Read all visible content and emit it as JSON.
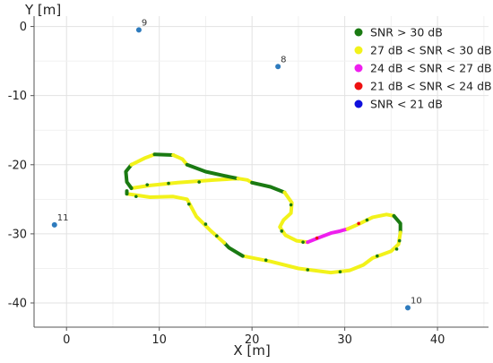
{
  "chart_data": {
    "type": "scatter",
    "xlabel": "X [m]",
    "ylabel": "Y [m]",
    "xlim": [
      -3.5,
      45.5
    ],
    "ylim": [
      -43.5,
      1.5
    ],
    "xticks": [
      0,
      10,
      20,
      30,
      40
    ],
    "yticks": [
      0,
      -10,
      -20,
      -30,
      -40
    ],
    "grid": true,
    "legend_position": "top-right",
    "anchors": [
      {
        "label": "9",
        "x": 7.8,
        "y": -0.5
      },
      {
        "label": "8",
        "x": 22.8,
        "y": -5.8
      },
      {
        "label": "11",
        "x": -1.3,
        "y": -28.7
      },
      {
        "label": "10",
        "x": 36.8,
        "y": -40.7
      }
    ],
    "anchor_color": "#2e7bbd",
    "series": [
      {
        "name": "SNR > 30 dB",
        "color": "#1a7a12"
      },
      {
        "name": "27 dB < SNR < 30 dB",
        "color": "#f2f21a"
      },
      {
        "name": "24 dB < SNR < 27 dB",
        "color": "#ee1fee"
      },
      {
        "name": "21 dB < SNR < 24 dB",
        "color": "#ee1111"
      },
      {
        "name": "SNR < 21 dB",
        "color": "#1010dd"
      }
    ],
    "trajectory": [
      {
        "series": 1,
        "points": [
          [
            18.5,
            -22.0
          ],
          [
            16.0,
            -22.2
          ],
          [
            12.0,
            -22.6
          ],
          [
            9.0,
            -23.0
          ],
          [
            7.0,
            -23.4
          ]
        ]
      },
      {
        "series": 0,
        "points": [
          [
            7.0,
            -23.4
          ],
          [
            6.5,
            -22.5
          ],
          [
            6.4,
            -21.0
          ],
          [
            7.0,
            -20.0
          ]
        ]
      },
      {
        "series": 1,
        "points": [
          [
            7.0,
            -20.0
          ],
          [
            8.5,
            -19.0
          ],
          [
            9.5,
            -18.5
          ]
        ]
      },
      {
        "series": 0,
        "points": [
          [
            9.5,
            -18.5
          ],
          [
            11.5,
            -18.6
          ]
        ]
      },
      {
        "series": 1,
        "points": [
          [
            11.5,
            -18.6
          ],
          [
            12.5,
            -19.2
          ],
          [
            13.0,
            -20.0
          ]
        ]
      },
      {
        "series": 0,
        "points": [
          [
            13.0,
            -20.0
          ],
          [
            15.0,
            -21.0
          ],
          [
            17.0,
            -21.6
          ],
          [
            18.5,
            -22.0
          ]
        ]
      },
      {
        "series": 1,
        "points": [
          [
            18.5,
            -22.0
          ],
          [
            19.5,
            -22.2
          ],
          [
            20.0,
            -22.6
          ]
        ]
      },
      {
        "series": 0,
        "points": [
          [
            20.0,
            -22.6
          ],
          [
            22.0,
            -23.2
          ],
          [
            23.5,
            -24.0
          ]
        ]
      },
      {
        "series": 1,
        "points": [
          [
            23.5,
            -24.0
          ],
          [
            24.3,
            -25.5
          ],
          [
            24.2,
            -27.0
          ],
          [
            23.4,
            -28.0
          ],
          [
            23.0,
            -29.0
          ],
          [
            23.6,
            -30.2
          ],
          [
            24.8,
            -31.0
          ],
          [
            26.0,
            -31.2
          ]
        ]
      },
      {
        "series": 2,
        "points": [
          [
            26.0,
            -31.2
          ],
          [
            27.3,
            -30.5
          ],
          [
            28.5,
            -29.9
          ],
          [
            29.5,
            -29.6
          ],
          [
            30.3,
            -29.3
          ]
        ]
      },
      {
        "series": 1,
        "points": [
          [
            30.3,
            -29.3
          ],
          [
            31.5,
            -28.6
          ],
          [
            33.0,
            -27.6
          ],
          [
            34.5,
            -27.2
          ],
          [
            35.3,
            -27.4
          ]
        ]
      },
      {
        "series": 0,
        "points": [
          [
            35.3,
            -27.4
          ],
          [
            36.0,
            -28.5
          ],
          [
            36.0,
            -29.8
          ]
        ]
      },
      {
        "series": 1,
        "points": [
          [
            36.0,
            -29.8
          ],
          [
            35.8,
            -31.5
          ],
          [
            35.0,
            -32.5
          ],
          [
            33.0,
            -33.5
          ],
          [
            32.0,
            -34.5
          ],
          [
            30.5,
            -35.3
          ],
          [
            28.5,
            -35.6
          ],
          [
            25.0,
            -35.0
          ],
          [
            22.0,
            -34.0
          ],
          [
            19.0,
            -33.2
          ]
        ]
      },
      {
        "series": 0,
        "points": [
          [
            19.0,
            -33.2
          ],
          [
            17.5,
            -32.0
          ],
          [
            17.0,
            -31.3
          ]
        ]
      },
      {
        "series": 1,
        "points": [
          [
            17.0,
            -31.3
          ],
          [
            15.5,
            -29.5
          ],
          [
            14.0,
            -27.5
          ],
          [
            13.0,
            -25.0
          ],
          [
            11.5,
            -24.6
          ],
          [
            9.0,
            -24.7
          ],
          [
            6.5,
            -24.2
          ]
        ]
      },
      {
        "series": 0,
        "points": [
          [
            6.5,
            -24.2
          ],
          [
            6.5,
            -23.8
          ]
        ]
      }
    ],
    "green_flecks": [
      [
        8.7,
        -22.9
      ],
      [
        11.0,
        -22.7
      ],
      [
        14.3,
        -22.5
      ],
      [
        13.2,
        -25.7
      ],
      [
        15.0,
        -28.6
      ],
      [
        16.2,
        -30.3
      ],
      [
        21.5,
        -33.8
      ],
      [
        26.0,
        -35.2
      ],
      [
        29.5,
        -35.5
      ],
      [
        33.5,
        -33.2
      ],
      [
        35.6,
        -32.2
      ],
      [
        35.9,
        -31.0
      ],
      [
        24.2,
        -25.8
      ],
      [
        23.2,
        -29.6
      ],
      [
        25.5,
        -31.2
      ],
      [
        32.4,
        -28.0
      ],
      [
        7.5,
        -24.6
      ]
    ],
    "red_flecks": [
      [
        31.5,
        -28.5
      ],
      [
        27.0,
        -30.6
      ]
    ]
  }
}
